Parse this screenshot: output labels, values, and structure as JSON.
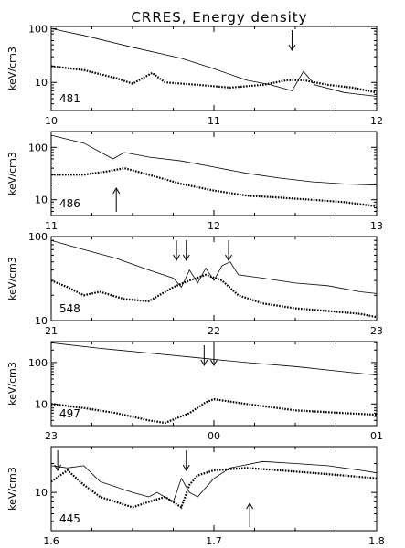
{
  "title": "CRRES,   Energy density",
  "chart_data": [
    {
      "type": "line",
      "orbit": "481",
      "ylabel": "keV/cm3",
      "yscale": "log",
      "ylim": [
        3,
        110
      ],
      "yticks": [
        {
          "v": 100,
          "label": "100"
        },
        {
          "v": 10,
          "label": "10"
        }
      ],
      "xlim": [
        10,
        12
      ],
      "xticks": [
        {
          "v": 10,
          "label": "10"
        },
        {
          "v": 11,
          "label": "11"
        },
        {
          "v": 12,
          "label": "12"
        }
      ],
      "series": [
        {
          "style": "solid",
          "points": [
            [
              10,
              100
            ],
            [
              10.2,
              75
            ],
            [
              10.5,
              45
            ],
            [
              10.8,
              28
            ],
            [
              11.0,
              18
            ],
            [
              11.2,
              11
            ],
            [
              11.35,
              9
            ],
            [
              11.48,
              7
            ],
            [
              11.55,
              16
            ],
            [
              11.62,
              9
            ],
            [
              11.8,
              6.5
            ],
            [
              12.0,
              5.5
            ]
          ]
        },
        {
          "style": "dotted",
          "points": [
            [
              10,
              20
            ],
            [
              10.2,
              17
            ],
            [
              10.4,
              12
            ],
            [
              10.5,
              9.5
            ],
            [
              10.62,
              15
            ],
            [
              10.7,
              10
            ],
            [
              10.9,
              9
            ],
            [
              11.1,
              8
            ],
            [
              11.3,
              9
            ],
            [
              11.45,
              11
            ],
            [
              11.55,
              11
            ],
            [
              11.7,
              9
            ],
            [
              11.85,
              8
            ],
            [
              12.0,
              6.5
            ]
          ]
        }
      ],
      "arrows": [
        {
          "x": 11.48,
          "dir": "down"
        }
      ]
    },
    {
      "type": "line",
      "orbit": "486",
      "ylabel": "keV/cm3",
      "yscale": "log",
      "ylim": [
        5,
        200
      ],
      "yticks": [
        {
          "v": 100,
          "label": "100"
        },
        {
          "v": 10,
          "label": "10"
        }
      ],
      "xlim": [
        11,
        13
      ],
      "xticks": [
        {
          "v": 11,
          "label": "11"
        },
        {
          "v": 12,
          "label": "12"
        },
        {
          "v": 13,
          "label": "13"
        }
      ],
      "series": [
        {
          "style": "solid",
          "points": [
            [
              11,
              170
            ],
            [
              11.2,
              120
            ],
            [
              11.38,
              60
            ],
            [
              11.45,
              80
            ],
            [
              11.6,
              65
            ],
            [
              11.8,
              55
            ],
            [
              12.0,
              42
            ],
            [
              12.2,
              32
            ],
            [
              12.4,
              26
            ],
            [
              12.6,
              22
            ],
            [
              12.8,
              20
            ],
            [
              13.0,
              19
            ]
          ]
        },
        {
          "style": "dotted",
          "points": [
            [
              11,
              30
            ],
            [
              11.2,
              30
            ],
            [
              11.35,
              35
            ],
            [
              11.45,
              40
            ],
            [
              11.6,
              30
            ],
            [
              11.8,
              20
            ],
            [
              12.0,
              15
            ],
            [
              12.2,
              12
            ],
            [
              12.4,
              11
            ],
            [
              12.6,
              10
            ],
            [
              12.8,
              9
            ],
            [
              13.0,
              7.5
            ]
          ]
        }
      ],
      "arrows": [
        {
          "x": 11.4,
          "dir": "up"
        }
      ]
    },
    {
      "type": "line",
      "orbit": "548",
      "ylabel": "keV/cm3",
      "yscale": "log",
      "ylim": [
        10,
        100
      ],
      "yticks": [
        {
          "v": 100,
          "label": "100"
        },
        {
          "v": 10,
          "label": "10"
        }
      ],
      "xlim": [
        21,
        23
      ],
      "xticks": [
        {
          "v": 21,
          "label": "21"
        },
        {
          "v": 22,
          "label": "22"
        },
        {
          "v": 23,
          "label": "23"
        }
      ],
      "series": [
        {
          "style": "solid",
          "points": [
            [
              21,
              90
            ],
            [
              21.2,
              70
            ],
            [
              21.4,
              55
            ],
            [
              21.6,
              40
            ],
            [
              21.75,
              32
            ],
            [
              21.8,
              25
            ],
            [
              21.85,
              40
            ],
            [
              21.9,
              28
            ],
            [
              21.95,
              42
            ],
            [
              22.0,
              30
            ],
            [
              22.05,
              45
            ],
            [
              22.1,
              50
            ],
            [
              22.15,
              35
            ],
            [
              22.3,
              32
            ],
            [
              22.5,
              28
            ],
            [
              22.7,
              26
            ],
            [
              22.9,
              22
            ],
            [
              23.0,
              21
            ]
          ]
        },
        {
          "style": "dotted",
          "points": [
            [
              21,
              30
            ],
            [
              21.1,
              25
            ],
            [
              21.2,
              20
            ],
            [
              21.3,
              22
            ],
            [
              21.45,
              18
            ],
            [
              21.6,
              17
            ],
            [
              21.75,
              25
            ],
            [
              21.85,
              30
            ],
            [
              21.95,
              35
            ],
            [
              22.05,
              30
            ],
            [
              22.15,
              20
            ],
            [
              22.3,
              16
            ],
            [
              22.5,
              14
            ],
            [
              22.7,
              13
            ],
            [
              22.9,
              12
            ],
            [
              23.0,
              11
            ]
          ]
        }
      ],
      "arrows": [
        {
          "x": 21.77,
          "dir": "down"
        },
        {
          "x": 21.83,
          "dir": "down"
        },
        {
          "x": 22.09,
          "dir": "down"
        }
      ]
    },
    {
      "type": "line",
      "orbit": "497",
      "ylabel": "keV/cm3",
      "yscale": "log",
      "ylim": [
        3,
        320
      ],
      "yticks": [
        {
          "v": 100,
          "label": "100"
        },
        {
          "v": 10,
          "label": "10"
        }
      ],
      "xlim": [
        23,
        25
      ],
      "xticks": [
        {
          "v": 23,
          "label": "23"
        },
        {
          "v": 24,
          "label": "00"
        },
        {
          "v": 25,
          "label": "01"
        }
      ],
      "series": [
        {
          "style": "solid",
          "points": [
            [
              23,
              300
            ],
            [
              23.3,
              220
            ],
            [
              23.6,
              170
            ],
            [
              23.9,
              130
            ],
            [
              24.2,
              100
            ],
            [
              24.5,
              80
            ],
            [
              24.8,
              60
            ],
            [
              25.0,
              50
            ]
          ]
        },
        {
          "style": "dotted",
          "points": [
            [
              23,
              10
            ],
            [
              23.2,
              8
            ],
            [
              23.4,
              6
            ],
            [
              23.6,
              4
            ],
            [
              23.7,
              3.5
            ],
            [
              23.85,
              6
            ],
            [
              23.95,
              11
            ],
            [
              24.0,
              13
            ],
            [
              24.2,
              10
            ],
            [
              24.5,
              7
            ],
            [
              24.8,
              6
            ],
            [
              25.0,
              5.5
            ]
          ]
        }
      ],
      "arrows": [
        {
          "x": 23.94,
          "dir": "down"
        },
        {
          "x": 24.0,
          "dir": "down"
        }
      ]
    },
    {
      "type": "line",
      "orbit": "445",
      "ylabel": "keV/cm3",
      "yscale": "log",
      "ylim": [
        4,
        30
      ],
      "yticks": [
        {
          "v": 10,
          "label": "10"
        }
      ],
      "xlim": [
        1.6,
        1.8
      ],
      "xticks": [
        {
          "v": 1.6,
          "label": "1.6"
        },
        {
          "v": 1.7,
          "label": "1.7"
        },
        {
          "v": 1.8,
          "label": "1.8"
        }
      ],
      "series": [
        {
          "style": "solid",
          "points": [
            [
              1.6,
              19
            ],
            [
              1.61,
              18
            ],
            [
              1.62,
              19
            ],
            [
              1.63,
              13
            ],
            [
              1.65,
              10
            ],
            [
              1.66,
              9
            ],
            [
              1.665,
              10
            ],
            [
              1.675,
              8
            ],
            [
              1.68,
              14
            ],
            [
              1.685,
              10
            ],
            [
              1.69,
              9
            ],
            [
              1.7,
              14
            ],
            [
              1.71,
              18
            ],
            [
              1.73,
              21
            ],
            [
              1.75,
              20
            ],
            [
              1.77,
              19
            ],
            [
              1.79,
              17
            ],
            [
              1.8,
              16
            ]
          ]
        },
        {
          "style": "dotted",
          "points": [
            [
              1.6,
              13
            ],
            [
              1.61,
              17
            ],
            [
              1.62,
              12
            ],
            [
              1.63,
              9
            ],
            [
              1.65,
              7
            ],
            [
              1.66,
              8
            ],
            [
              1.67,
              9
            ],
            [
              1.68,
              7
            ],
            [
              1.685,
              12
            ],
            [
              1.69,
              15
            ],
            [
              1.7,
              17
            ],
            [
              1.72,
              18
            ],
            [
              1.74,
              17
            ],
            [
              1.76,
              16
            ],
            [
              1.78,
              15
            ],
            [
              1.8,
              14
            ]
          ]
        }
      ],
      "arrows": [
        {
          "x": 1.604,
          "dir": "down"
        },
        {
          "x": 1.683,
          "dir": "down"
        },
        {
          "x": 1.722,
          "dir": "up"
        }
      ]
    }
  ]
}
